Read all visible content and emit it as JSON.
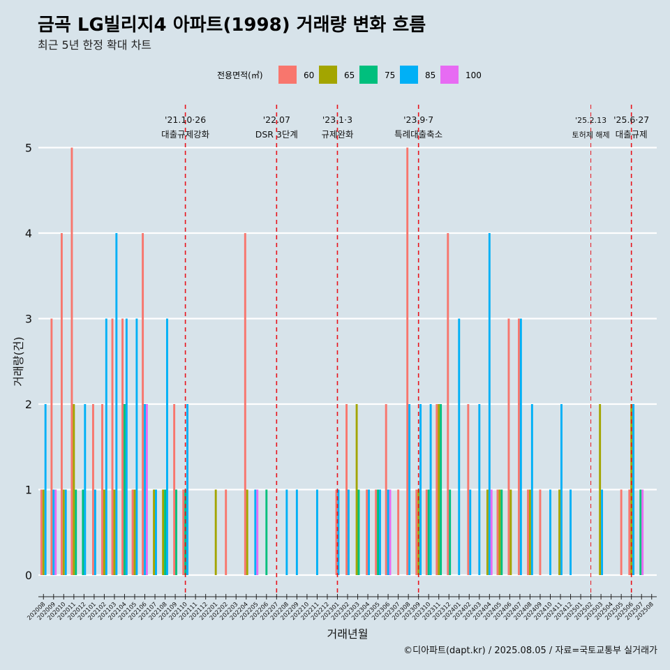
{
  "title": "금곡 LG빌리지4 아파트(1998) 거래량 변화 흐름",
  "subtitle": "최근 5년 한정 확대 차트",
  "caption": "©디아파트(dapt.kr) / 2025.08.05 / 자료=국토교통부 실거래가",
  "chart_data": {
    "type": "bar",
    "title": "금곡 LG빌리지4 아파트(1998) 거래량 변화 흐름",
    "xlabel": "거래년월",
    "ylabel": "거래량(건)",
    "ylim": [
      0,
      5
    ],
    "yticks": [
      0,
      1,
      2,
      3,
      4,
      5
    ],
    "legend_title": "전용면적(㎡)",
    "legend_position": "top",
    "series": [
      {
        "name": "60",
        "color": "#f8766d"
      },
      {
        "name": "65",
        "color": "#a3a500"
      },
      {
        "name": "75",
        "color": "#00bf7d"
      },
      {
        "name": "85",
        "color": "#00b0f6"
      },
      {
        "name": "100",
        "color": "#e76bf3"
      }
    ],
    "months": [
      "202008",
      "202009",
      "202010",
      "202011",
      "202012",
      "202101",
      "202102",
      "202103",
      "202104",
      "202105",
      "202106",
      "202107",
      "202108",
      "202109",
      "202110",
      "202111",
      "202112",
      "202201",
      "202202",
      "202203",
      "202204",
      "202205",
      "202206",
      "202207",
      "202208",
      "202209",
      "202210",
      "202211",
      "202212",
      "202301",
      "202302",
      "202303",
      "202304",
      "202305",
      "202306",
      "202307",
      "202308",
      "202309",
      "202310",
      "202311",
      "202312",
      "202401",
      "202402",
      "202403",
      "202404",
      "202405",
      "202406",
      "202407",
      "202408",
      "202409",
      "202410",
      "202411",
      "202412",
      "202501",
      "202502",
      "202503",
      "202504",
      "202505",
      "202506",
      "202507",
      "202508"
    ],
    "data": {
      "202008": {
        "60": 1,
        "65": 1,
        "85": 2
      },
      "202009": {
        "60": 3,
        "85": 1,
        "100": 1
      },
      "202010": {
        "60": 4,
        "65": 1,
        "85": 1
      },
      "202011": {
        "60": 5,
        "65": 2,
        "75": 1
      },
      "202012": {
        "75": 1,
        "85": 2
      },
      "202101": {
        "60": 2,
        "85": 1
      },
      "202102": {
        "60": 2,
        "65": 1,
        "85": 3
      },
      "202103": {
        "60": 3,
        "65": 1,
        "85": 4
      },
      "202104": {
        "60": 3,
        "75": 2,
        "85": 3
      },
      "202105": {
        "60": 1,
        "65": 1,
        "85": 3
      },
      "202106": {
        "60": 4,
        "85": 2,
        "100": 2
      },
      "202107": {
        "65": 1,
        "85": 1
      },
      "202108": {
        "65": 1,
        "75": 1,
        "85": 3
      },
      "202109": {
        "60": 2,
        "75": 1
      },
      "202110": {
        "60": 1,
        "75": 1,
        "85": 2
      },
      "202111": {},
      "202112": {},
      "202201": {
        "65": 1
      },
      "202202": {
        "60": 1
      },
      "202203": {},
      "202204": {
        "60": 4,
        "65": 1
      },
      "202205": {
        "85": 1,
        "100": 1
      },
      "202206": {
        "75": 1
      },
      "202207": {},
      "202208": {
        "85": 1
      },
      "202209": {
        "85": 1
      },
      "202210": {},
      "202211": {
        "85": 1
      },
      "202212": {},
      "202301": {
        "60": 1,
        "85": 1
      },
      "202302": {
        "60": 2,
        "85": 1
      },
      "202303": {
        "65": 2,
        "75": 1
      },
      "202304": {
        "60": 1,
        "85": 1
      },
      "202305": {
        "60": 1,
        "75": 1,
        "85": 1
      },
      "202306": {
        "60": 2,
        "85": 1,
        "100": 1
      },
      "202307": {
        "60": 1
      },
      "202308": {
        "60": 5,
        "85": 2
      },
      "202309": {
        "60": 1,
        "65": 1,
        "85": 2
      },
      "202310": {
        "60": 1,
        "75": 1,
        "85": 2
      },
      "202311": {
        "60": 2,
        "65": 2,
        "75": 2
      },
      "202312": {
        "60": 4,
        "75": 1
      },
      "202401": {
        "85": 3
      },
      "202402": {
        "60": 2,
        "85": 1
      },
      "202403": {
        "85": 2
      },
      "202404": {
        "65": 1,
        "85": 4,
        "100": 1
      },
      "202405": {
        "60": 1,
        "65": 1,
        "75": 1
      },
      "202406": {
        "60": 3,
        "65": 1
      },
      "202407": {
        "60": 3,
        "85": 3
      },
      "202408": {
        "60": 1,
        "65": 1,
        "85": 2
      },
      "202409": {
        "60": 1
      },
      "202410": {
        "85": 1
      },
      "202411": {
        "65": 1,
        "85": 2
      },
      "202412": {
        "85": 1
      },
      "202501": {},
      "202502": {},
      "202503": {
        "65": 2,
        "85": 1
      },
      "202504": {},
      "202505": {
        "60": 1
      },
      "202506": {
        "60": 1,
        "65": 2,
        "85": 2
      },
      "202507": {
        "75": 1,
        "100": 1
      },
      "202508": {}
    },
    "events": [
      {
        "date_label": "'21.10·26",
        "text": "대출규제강화",
        "x_month": "202110",
        "small": false
      },
      {
        "date_label": "'22.07",
        "text": "DSR 3단계",
        "x_month": "202207",
        "small": false
      },
      {
        "date_label": "'23.1·3",
        "text": "규제완화",
        "x_month": "202301",
        "small": false
      },
      {
        "date_label": "'23.9·7",
        "text": "특례대출축소",
        "x_month": "202309",
        "small": false
      },
      {
        "date_label": "'25.2.13",
        "text": "토허제 해제",
        "x_month": "202502",
        "small": true
      },
      {
        "date_label": "'25.6·27",
        "text": "대출규제",
        "x_month": "202506",
        "small": false
      }
    ]
  }
}
